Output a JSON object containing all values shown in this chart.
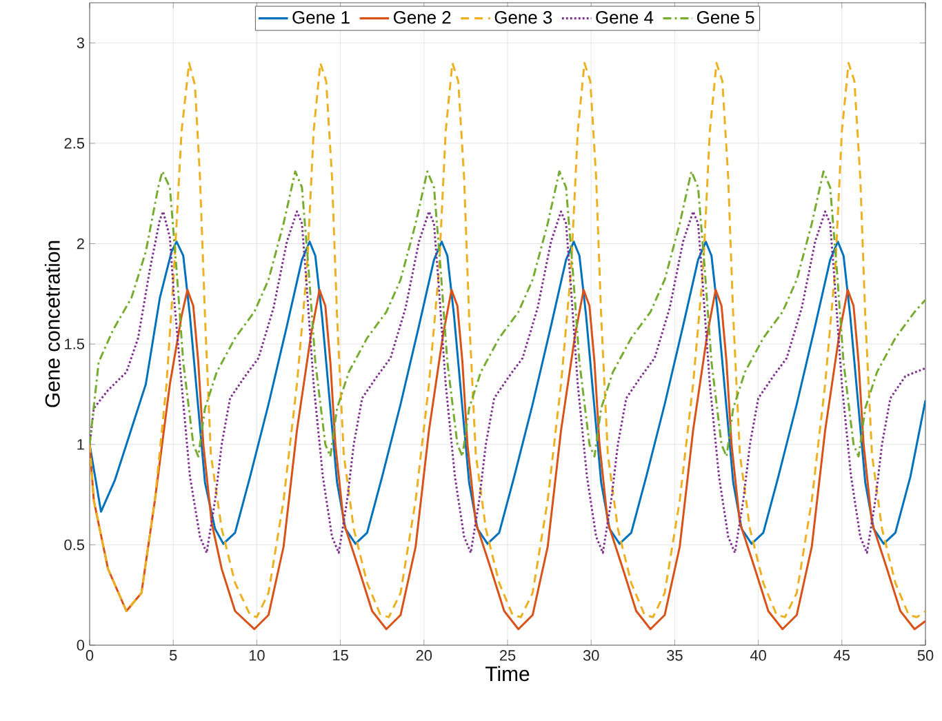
{
  "chart_data": {
    "type": "line",
    "xlabel": "Time",
    "ylabel": "Gene concetration",
    "xlim": [
      0,
      50
    ],
    "ylim": [
      0,
      3.2
    ],
    "xticks": [
      0,
      5,
      10,
      15,
      20,
      25,
      30,
      35,
      40,
      45,
      50
    ],
    "yticks": [
      0,
      0.5,
      1,
      1.5,
      2,
      2.5,
      3
    ],
    "grid": true,
    "legend": "top",
    "marker": "none",
    "series": [
      {
        "name": "Gene 1",
        "color": "#0072bd",
        "line_style": "solid",
        "x": [
          0,
          0.68,
          1.5,
          2.2,
          3.36,
          4.2,
          4.9,
          5.2,
          5.6,
          6.0,
          6.5,
          6.9,
          7.5,
          8,
          8.7,
          9.6,
          10.7,
          11.8,
          12.7,
          13.16,
          13.5,
          13.9,
          14.4,
          14.8,
          15.3,
          15.9,
          16.6,
          17.5,
          18.6,
          19.7,
          20.6,
          21.06,
          21.4,
          21.8,
          22.3,
          22.7,
          23.2,
          23.8,
          24.5,
          25.4,
          26.5,
          27.6,
          28.5,
          28.96,
          29.3,
          29.7,
          30.2,
          30.6,
          31.1,
          31.7,
          32.4,
          33.3,
          34.4,
          35.5,
          36.4,
          36.86,
          37.2,
          37.6,
          38.1,
          38.5,
          39.0,
          39.6,
          40.3,
          41.2,
          42.3,
          43.4,
          44.3,
          44.76,
          45.1,
          45.5,
          46.0,
          46.4,
          46.9,
          47.5,
          48.2,
          49.1,
          50
        ],
        "values": [
          1,
          0.665,
          0.82,
          1.0,
          1.3,
          1.73,
          1.96,
          2.01,
          1.94,
          1.64,
          1.18,
          0.81,
          0.58,
          0.505,
          0.56,
          0.84,
          1.2,
          1.59,
          1.92,
          2.01,
          1.94,
          1.64,
          1.18,
          0.81,
          0.58,
          0.505,
          0.56,
          0.84,
          1.2,
          1.59,
          1.92,
          2.01,
          1.94,
          1.64,
          1.18,
          0.81,
          0.58,
          0.505,
          0.56,
          0.84,
          1.2,
          1.59,
          1.92,
          2.01,
          1.94,
          1.64,
          1.18,
          0.81,
          0.58,
          0.505,
          0.56,
          0.84,
          1.2,
          1.59,
          1.92,
          2.01,
          1.94,
          1.64,
          1.18,
          0.81,
          0.58,
          0.505,
          0.56,
          0.84,
          1.2,
          1.59,
          1.92,
          2.01,
          1.94,
          1.64,
          1.18,
          0.81,
          0.58,
          0.505,
          0.56,
          0.84,
          1.22
        ]
      },
      {
        "name": "Gene 2",
        "color": "#d95319",
        "line_style": "solid",
        "x": [
          0,
          0.25,
          1.1,
          2.2,
          3.1,
          3.9,
          4.8,
          5.5,
          5.85,
          6.2,
          6.5,
          6.8,
          7.3,
          7.9,
          8.7,
          9.85,
          10.7,
          11.6,
          12.4,
          13.25,
          13.75,
          14.1,
          14.4,
          14.7,
          15.2,
          16.1,
          16.9,
          17.75,
          18.6,
          19.5,
          20.3,
          21.15,
          21.65,
          22.0,
          22.3,
          22.6,
          23.1,
          24.0,
          24.8,
          25.65,
          26.5,
          27.4,
          28.2,
          29.05,
          29.55,
          29.9,
          30.2,
          30.5,
          31.0,
          31.9,
          32.7,
          33.55,
          34.4,
          35.3,
          36.1,
          36.95,
          37.45,
          37.8,
          38.1,
          38.4,
          38.9,
          39.8,
          40.6,
          41.45,
          42.3,
          43.2,
          44.0,
          44.85,
          45.35,
          45.7,
          46.0,
          46.3,
          46.8,
          47.7,
          48.5,
          49.35,
          50
        ],
        "values": [
          1,
          0.72,
          0.38,
          0.17,
          0.26,
          0.72,
          1.3,
          1.64,
          1.77,
          1.69,
          1.41,
          1.0,
          0.61,
          0.38,
          0.17,
          0.08,
          0.15,
          0.49,
          1.07,
          1.55,
          1.77,
          1.69,
          1.41,
          1.0,
          0.61,
          0.38,
          0.17,
          0.08,
          0.15,
          0.49,
          1.07,
          1.55,
          1.77,
          1.69,
          1.41,
          1.0,
          0.61,
          0.38,
          0.17,
          0.08,
          0.15,
          0.49,
          1.07,
          1.55,
          1.77,
          1.69,
          1.41,
          1.0,
          0.61,
          0.38,
          0.17,
          0.08,
          0.15,
          0.49,
          1.07,
          1.55,
          1.77,
          1.69,
          1.41,
          1.0,
          0.61,
          0.38,
          0.17,
          0.08,
          0.15,
          0.49,
          1.07,
          1.55,
          1.77,
          1.69,
          1.41,
          1.0,
          0.61,
          0.38,
          0.17,
          0.08,
          0.12
        ]
      },
      {
        "name": "Gene 3",
        "color": "#edb120",
        "line_style": "dashed",
        "x": [
          0,
          0.25,
          1.1,
          2.2,
          3.1,
          3.9,
          4.6,
          5.05,
          5.5,
          5.95,
          6.3,
          6.6,
          6.9,
          7.25,
          7.9,
          8.7,
          9.6,
          10,
          10.7,
          11.6,
          12.4,
          13.0,
          13.4,
          13.8,
          14.15,
          14.5,
          14.8,
          15.2,
          15.8,
          16.6,
          17.4,
          17.9,
          18.6,
          19.5,
          20.3,
          20.9,
          21.3,
          21.7,
          22.05,
          22.4,
          22.7,
          23.1,
          23.7,
          24.5,
          25.3,
          25.8,
          26.5,
          27.4,
          28.2,
          28.8,
          29.2,
          29.6,
          29.95,
          30.3,
          30.6,
          31.0,
          31.6,
          32.4,
          33.2,
          33.7,
          34.4,
          35.3,
          36.1,
          36.7,
          37.1,
          37.5,
          37.85,
          38.2,
          38.5,
          38.9,
          39.5,
          40.3,
          41.1,
          41.6,
          42.3,
          43.2,
          44.0,
          44.6,
          45.0,
          45.4,
          45.75,
          46.1,
          46.4,
          46.8,
          47.4,
          48.2,
          49.0,
          49.5,
          50
        ],
        "values": [
          1,
          0.72,
          0.38,
          0.17,
          0.26,
          0.72,
          1.3,
          1.87,
          2.56,
          2.9,
          2.79,
          2.33,
          1.64,
          0.95,
          0.58,
          0.31,
          0.15,
          0.14,
          0.26,
          0.72,
          1.3,
          1.87,
          2.56,
          2.9,
          2.81,
          2.33,
          1.64,
          0.95,
          0.58,
          0.31,
          0.15,
          0.14,
          0.26,
          0.72,
          1.3,
          1.87,
          2.56,
          2.9,
          2.81,
          2.33,
          1.64,
          0.95,
          0.58,
          0.31,
          0.15,
          0.14,
          0.26,
          0.72,
          1.3,
          1.87,
          2.56,
          2.9,
          2.81,
          2.33,
          1.64,
          0.95,
          0.58,
          0.31,
          0.15,
          0.14,
          0.26,
          0.72,
          1.3,
          1.87,
          2.56,
          2.9,
          2.81,
          2.33,
          1.64,
          0.95,
          0.58,
          0.31,
          0.15,
          0.14,
          0.26,
          0.72,
          1.3,
          1.87,
          2.56,
          2.9,
          2.81,
          2.33,
          1.64,
          0.95,
          0.58,
          0.31,
          0.15,
          0.14,
          0.17
        ]
      },
      {
        "name": "Gene 4",
        "color": "#7e2f8e",
        "line_style": "dotted",
        "x": [
          0,
          0.25,
          1.1,
          2.2,
          2.9,
          3.6,
          4.2,
          4.4,
          4.8,
          5.05,
          5.5,
          6.0,
          6.6,
          7,
          7.5,
          7.9,
          8.4,
          9.3,
          10.1,
          11.0,
          11.8,
          12.4,
          12.7,
          12.95,
          13.4,
          13.95,
          14.5,
          14.9,
          15.4,
          15.8,
          16.3,
          17.2,
          18.0,
          18.9,
          19.7,
          20.3,
          20.6,
          20.85,
          21.3,
          21.85,
          22.4,
          22.8,
          23.3,
          23.7,
          24.2,
          25.1,
          25.9,
          26.8,
          27.6,
          28.2,
          28.5,
          28.75,
          29.2,
          29.75,
          30.3,
          30.7,
          31.2,
          31.6,
          32.1,
          33.0,
          33.8,
          34.7,
          35.5,
          36.1,
          36.4,
          36.65,
          37.1,
          37.65,
          38.2,
          38.6,
          39.1,
          39.5,
          40.0,
          40.9,
          41.7,
          42.6,
          43.4,
          44.0,
          44.3,
          44.55,
          45.0,
          45.55,
          46.1,
          46.5,
          47.0,
          47.4,
          47.9,
          48.8,
          50
        ],
        "values": [
          1,
          1.18,
          1.27,
          1.36,
          1.53,
          1.87,
          2.12,
          2.16,
          2.03,
          1.73,
          1.3,
          0.84,
          0.54,
          0.46,
          0.72,
          1.0,
          1.23,
          1.34,
          1.43,
          1.68,
          2.01,
          2.16,
          2.1,
          1.83,
          1.3,
          0.84,
          0.54,
          0.46,
          0.72,
          1.0,
          1.23,
          1.34,
          1.43,
          1.68,
          2.01,
          2.16,
          2.1,
          1.83,
          1.3,
          0.84,
          0.54,
          0.46,
          0.72,
          1.0,
          1.23,
          1.34,
          1.43,
          1.68,
          2.01,
          2.16,
          2.1,
          1.83,
          1.3,
          0.84,
          0.54,
          0.46,
          0.72,
          1.0,
          1.23,
          1.34,
          1.43,
          1.68,
          2.01,
          2.16,
          2.1,
          1.83,
          1.3,
          0.84,
          0.54,
          0.46,
          0.72,
          1.0,
          1.23,
          1.34,
          1.43,
          1.68,
          2.01,
          2.16,
          2.1,
          1.83,
          1.3,
          0.84,
          0.54,
          0.46,
          0.72,
          1.0,
          1.23,
          1.34,
          1.38
        ]
      },
      {
        "name": "Gene 5",
        "color": "#77ac30",
        "line_style": "dashdot",
        "x": [
          0,
          0.54,
          1.4,
          2.5,
          3.36,
          4.1,
          4.35,
          4.8,
          5.2,
          5.6,
          6.2,
          6.5,
          6.9,
          7.6,
          8.7,
          9.85,
          10.7,
          11.6,
          12.3,
          12.7,
          13.1,
          13.5,
          14.1,
          14.4,
          14.8,
          15.5,
          16.6,
          17.75,
          18.6,
          19.5,
          20.2,
          20.6,
          21.0,
          21.4,
          22.0,
          22.3,
          22.7,
          23.4,
          24.5,
          25.65,
          26.5,
          27.4,
          28.1,
          28.5,
          28.9,
          29.3,
          29.9,
          30.2,
          30.6,
          31.3,
          32.4,
          33.55,
          34.4,
          35.3,
          36.0,
          36.4,
          36.8,
          37.2,
          37.8,
          38.1,
          38.5,
          39.2,
          40.3,
          41.45,
          42.3,
          43.2,
          43.9,
          44.3,
          44.7,
          45.1,
          45.7,
          46.0,
          46.4,
          47.1,
          48.2,
          49.35,
          50
        ],
        "values": [
          1,
          1.41,
          1.57,
          1.73,
          1.96,
          2.28,
          2.36,
          2.28,
          1.87,
          1.41,
          1.0,
          0.94,
          1.18,
          1.36,
          1.53,
          1.66,
          1.82,
          2.1,
          2.36,
          2.28,
          1.87,
          1.41,
          1.0,
          0.94,
          1.18,
          1.36,
          1.53,
          1.66,
          1.82,
          2.1,
          2.36,
          2.28,
          1.87,
          1.41,
          1.0,
          0.94,
          1.18,
          1.36,
          1.53,
          1.66,
          1.82,
          2.1,
          2.36,
          2.28,
          1.87,
          1.41,
          1.0,
          0.94,
          1.18,
          1.36,
          1.53,
          1.66,
          1.82,
          2.1,
          2.36,
          2.28,
          1.87,
          1.41,
          1.0,
          0.94,
          1.18,
          1.36,
          1.53,
          1.66,
          1.82,
          2.1,
          2.36,
          2.28,
          1.87,
          1.41,
          1.0,
          0.94,
          1.18,
          1.36,
          1.53,
          1.66,
          1.72
        ]
      }
    ]
  }
}
